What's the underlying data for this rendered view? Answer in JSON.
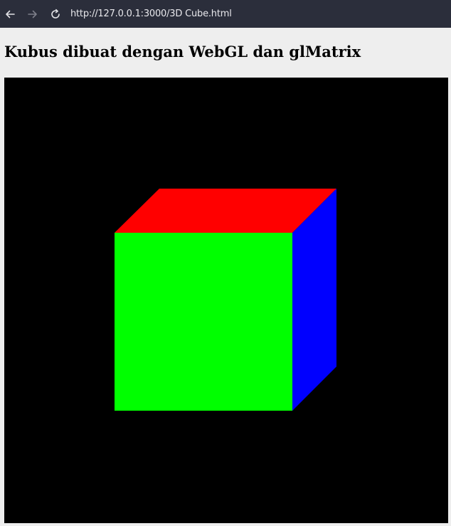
{
  "browser": {
    "url": "http://127.0.0.1:3000/3D Cube.html",
    "back_icon": "arrow-left-icon",
    "forward_icon": "arrow-right-icon",
    "reload_icon": "reload-icon"
  },
  "page": {
    "heading": "Kubus dibuat dengan WebGL dan glMatrix"
  },
  "scene": {
    "background_color": "#000000",
    "faces": {
      "top": {
        "name": "top-face",
        "color": "#ff0000"
      },
      "front": {
        "name": "front-face",
        "color": "#00ff00"
      },
      "right": {
        "name": "right-face",
        "color": "#0000ff"
      }
    }
  }
}
